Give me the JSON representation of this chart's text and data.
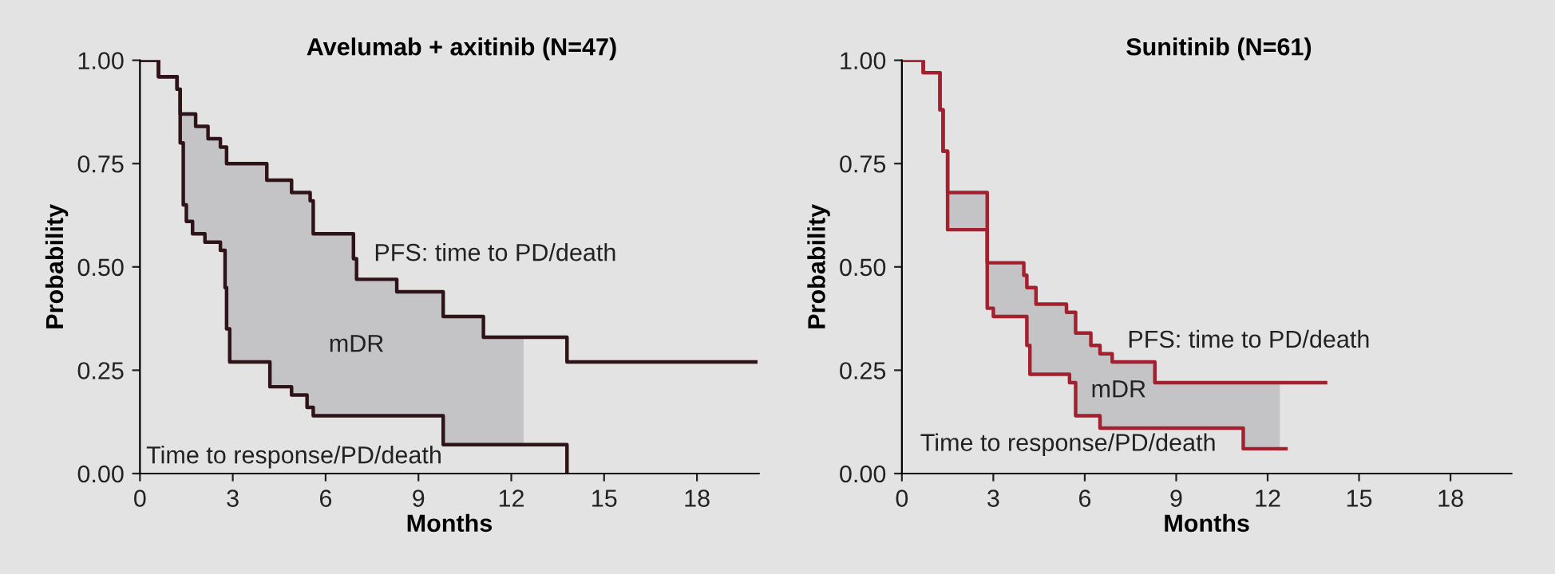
{
  "chart_data": [
    {
      "type": "step",
      "title": "Avelumab + axitinib (N=47)",
      "xlabel": "Months",
      "ylabel": "Probability",
      "x": [
        0,
        0.6,
        1.2,
        1.3,
        1.4,
        1.5,
        1.7,
        1.8,
        2.1,
        2.2,
        2.6,
        2.75,
        2.8,
        2.9,
        4.1,
        4.2,
        4.9,
        5.4,
        5.5,
        5.6,
        6.9,
        7.0,
        8.3,
        9.8,
        11.1,
        12.4,
        13.8,
        19.9
      ],
      "series": [
        {
          "color": "#2e1418",
          "values": [
            1.0,
            0.96,
            0.93,
            0.87,
            0.87,
            0.87,
            0.87,
            0.84,
            0.84,
            0.81,
            0.79,
            0.79,
            0.75,
            0.75,
            0.71,
            0.71,
            0.68,
            0.68,
            0.66,
            0.58,
            0.52,
            0.47,
            0.44,
            0.38,
            0.33,
            0.33,
            0.27,
            0.27
          ],
          "lower": [
            null,
            null,
            null,
            0.8,
            0.65,
            0.61,
            0.58,
            0.58,
            0.56,
            0.56,
            0.54,
            0.45,
            0.35,
            0.27,
            0.27,
            0.21,
            0.19,
            0.16,
            0.16,
            0.14,
            0.14,
            0.14,
            0.14,
            0.07,
            0.07,
            0.07,
            null,
            null
          ],
          "upper": [
            null,
            null,
            null,
            0.87,
            0.87,
            0.87,
            0.87,
            0.84,
            0.84,
            0.81,
            0.79,
            0.79,
            0.75,
            0.75,
            0.71,
            0.71,
            0.68,
            0.68,
            0.66,
            0.58,
            0.52,
            0.47,
            0.44,
            0.38,
            0.33,
            0.33,
            null,
            null
          ]
        },
        {
          "color": "#2e1418",
          "values": [
            1.0,
            0.96,
            0.93,
            0.8,
            0.65,
            0.61,
            0.58,
            0.58,
            0.56,
            0.56,
            0.54,
            0.45,
            0.35,
            0.27,
            0.27,
            0.21,
            0.19,
            0.16,
            0.16,
            0.14,
            0.14,
            0.14,
            0.14,
            0.07,
            0.07,
            0.07,
            0.0,
            null
          ]
        }
      ],
      "annotations": [
        "PFS: time to PD/death",
        "mDR",
        "Time to response/PD/death"
      ],
      "xlim": [
        0,
        20
      ],
      "ylim": [
        0,
        1
      ],
      "xticks": [
        0,
        3,
        6,
        9,
        12,
        15,
        18
      ],
      "yticks": [
        {
          "value": 0,
          "label": "0.00"
        },
        {
          "value": 0.25,
          "label": "0.25"
        },
        {
          "value": 0.5,
          "label": "0.50"
        },
        {
          "value": 0.75,
          "label": "0.75"
        },
        {
          "value": 1,
          "label": "1.00"
        }
      ],
      "grid": false
    },
    {
      "type": "step",
      "title": "Sunitinib (N=61)",
      "xlabel": "Months",
      "ylabel": "Probability",
      "x": [
        0,
        0.7,
        1.25,
        1.35,
        1.5,
        2.7,
        2.8,
        3.0,
        4.0,
        4.1,
        4.2,
        4.4,
        5.4,
        5.5,
        5.7,
        6.2,
        6.5,
        6.9,
        8.3,
        11.2,
        12.4,
        12.6,
        13.9
      ],
      "series": [
        {
          "color": "#a3202e",
          "values": [
            1.0,
            0.97,
            0.88,
            0.78,
            0.68,
            0.68,
            0.51,
            0.51,
            0.48,
            0.45,
            0.45,
            0.41,
            0.39,
            0.39,
            0.34,
            0.31,
            0.29,
            0.27,
            0.22,
            0.22,
            0.22,
            0.22,
            0.22
          ],
          "lower": [
            null,
            null,
            null,
            null,
            0.59,
            0.59,
            0.4,
            0.38,
            0.38,
            0.31,
            0.24,
            0.24,
            0.24,
            0.22,
            0.14,
            0.14,
            0.11,
            0.11,
            0.11,
            0.06,
            0.06,
            null,
            null
          ],
          "upper": [
            null,
            null,
            null,
            null,
            0.68,
            0.68,
            0.51,
            0.51,
            0.48,
            0.45,
            0.45,
            0.41,
            0.39,
            0.39,
            0.34,
            0.31,
            0.29,
            0.27,
            0.22,
            0.22,
            0.22,
            null,
            null
          ]
        },
        {
          "color": "#a3202e",
          "values": [
            1.0,
            0.97,
            0.88,
            0.78,
            0.59,
            0.59,
            0.4,
            0.38,
            0.38,
            0.31,
            0.24,
            0.24,
            0.24,
            0.22,
            0.14,
            0.14,
            0.11,
            0.11,
            0.11,
            0.06,
            0.06,
            0.06,
            null
          ]
        }
      ],
      "annotations": [
        "PFS: time to PD/death",
        "mDR",
        "Time to response/PD/death"
      ],
      "xlim": [
        0,
        20
      ],
      "ylim": [
        0,
        1
      ],
      "xticks": [
        0,
        3,
        6,
        9,
        12,
        15,
        18
      ],
      "yticks": [
        {
          "value": 0,
          "label": "0.00"
        },
        {
          "value": 0.25,
          "label": "0.25"
        },
        {
          "value": 0.5,
          "label": "0.50"
        },
        {
          "value": 0.75,
          "label": "0.75"
        },
        {
          "value": 1,
          "label": "1.00"
        }
      ],
      "grid": false
    }
  ]
}
